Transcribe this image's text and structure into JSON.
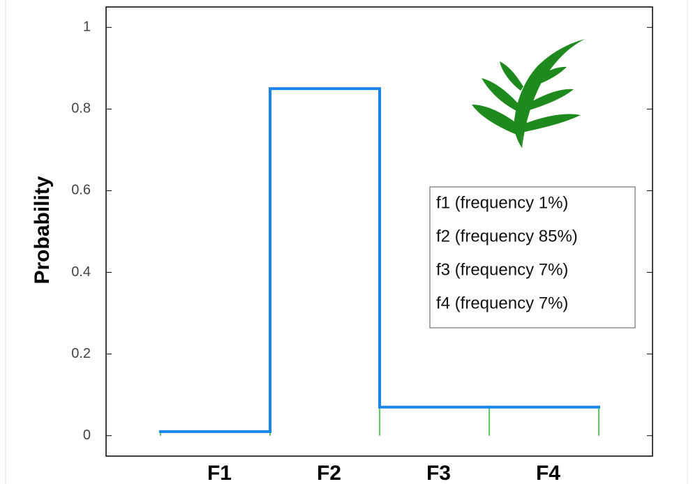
{
  "chart_data": {
    "type": "step",
    "y_label": "Probability",
    "categories": [
      "F1",
      "F2",
      "F3",
      "F4"
    ],
    "values": [
      0.01,
      0.85,
      0.07,
      0.07
    ],
    "color": "#1a86ea",
    "stem_color": "#2bb52b",
    "ylim": [
      -0.05,
      1.05
    ],
    "yticks": [
      0,
      0.2,
      0.4,
      0.6,
      0.8,
      1
    ],
    "legend": [
      "f1 (frequency 1%)",
      "f2 (frequency 85%)",
      "f3 (frequency 7%)",
      "f4 (frequency 7%)"
    ]
  }
}
